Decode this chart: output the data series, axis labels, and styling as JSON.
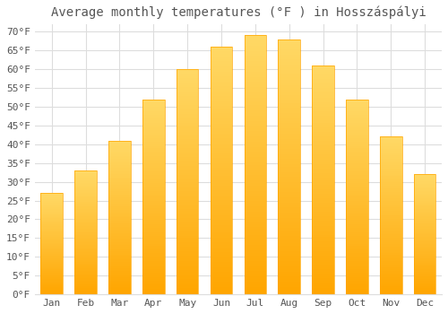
{
  "title": "Average monthly temperatures (°F ) in Hosszáspályi",
  "months": [
    "Jan",
    "Feb",
    "Mar",
    "Apr",
    "May",
    "Jun",
    "Jul",
    "Aug",
    "Sep",
    "Oct",
    "Nov",
    "Dec"
  ],
  "values": [
    27.0,
    33.0,
    41.0,
    52.0,
    60.0,
    66.0,
    69.0,
    68.0,
    61.0,
    52.0,
    42.0,
    32.0
  ],
  "bar_color_top": "#FFD966",
  "bar_color_bottom": "#FFA500",
  "background_color": "#FFFFFF",
  "grid_color": "#DDDDDD",
  "ylim": [
    0,
    72
  ],
  "yticks": [
    0,
    5,
    10,
    15,
    20,
    25,
    30,
    35,
    40,
    45,
    50,
    55,
    60,
    65,
    70
  ],
  "title_fontsize": 10,
  "tick_fontsize": 8,
  "text_color": "#555555",
  "font_family": "monospace"
}
